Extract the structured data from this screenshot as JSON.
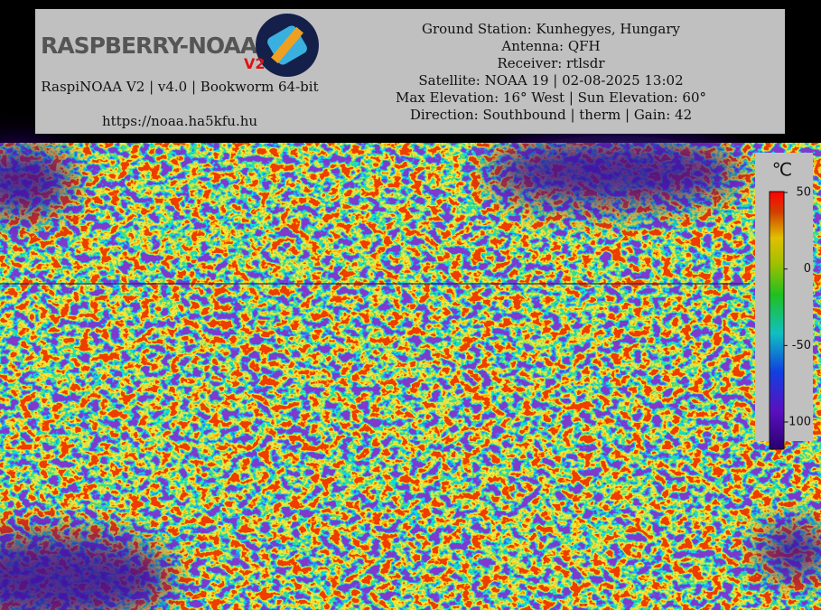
{
  "header": {
    "logo": {
      "text": "RASPBERRY-NOAA",
      "badge": "V2"
    },
    "info": "RaspiNOAA V2 | v4.0 | Bookworm 64-bit",
    "url": "https://noaa.ha5kfu.hu",
    "details": [
      "Ground Station: Kunhegyes, Hungary",
      "Antenna: QFH",
      "Receiver: rtlsdr",
      "Satellite: NOAA 19 | 02-08-2025 13:02",
      "Max Elevation: 16° West | Sun Elevation: 60°",
      "Direction: Southbound | therm | Gain: 42"
    ]
  },
  "legend": {
    "unit": "℃",
    "ticks": [
      50,
      0,
      -50,
      -100
    ]
  }
}
